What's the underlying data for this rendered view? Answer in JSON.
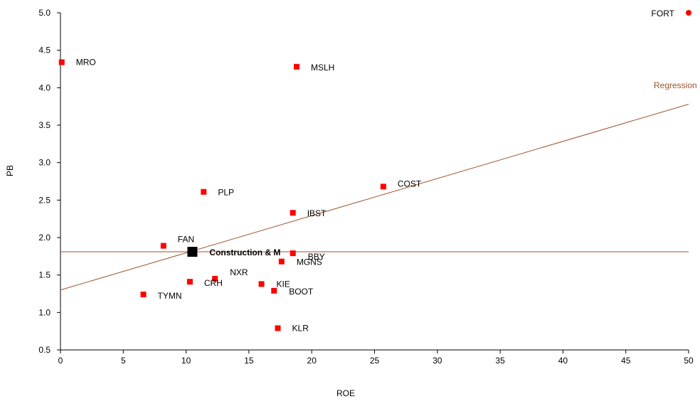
{
  "chart_data": {
    "type": "scatter",
    "title": "",
    "xlabel": "ROE",
    "ylabel": "PB",
    "xlim": [
      0,
      50
    ],
    "ylim": [
      0.5,
      5.0
    ],
    "x_ticks": [
      0,
      5,
      10,
      15,
      20,
      25,
      30,
      35,
      40,
      45,
      50
    ],
    "y_ticks": [
      "0.5",
      "1.0",
      "1.5",
      "2.0",
      "2.5",
      "3.0",
      "3.5",
      "4.0",
      "4.5",
      "5.0"
    ],
    "grid": false,
    "colors": {
      "point": "#ff0000",
      "highlight": "#000000",
      "regression": "#a0522d",
      "axis": "#000000"
    },
    "points": [
      {
        "label": "MRO",
        "x": 0.1,
        "y": 4.34
      },
      {
        "label": "MSLH",
        "x": 18.8,
        "y": 4.28
      },
      {
        "label": "PLP",
        "x": 11.4,
        "y": 2.61
      },
      {
        "label": "COST",
        "x": 25.7,
        "y": 2.68
      },
      {
        "label": "IBST",
        "x": 18.5,
        "y": 2.33
      },
      {
        "label": "FAN",
        "x": 8.2,
        "y": 1.89
      },
      {
        "label": "BBY",
        "x": 18.5,
        "y": 1.79
      },
      {
        "label": "MGNS",
        "x": 17.6,
        "y": 1.68
      },
      {
        "label": "NXR",
        "x": 12.3,
        "y": 1.45
      },
      {
        "label": "CRH",
        "x": 10.3,
        "y": 1.41
      },
      {
        "label": "KIE",
        "x": 16.0,
        "y": 1.38
      },
      {
        "label": "BOOT",
        "x": 17.0,
        "y": 1.29
      },
      {
        "label": "TYMN",
        "x": 6.6,
        "y": 1.24
      },
      {
        "label": "KLR",
        "x": 17.3,
        "y": 0.79
      }
    ],
    "highlight": {
      "label": "Construction & M",
      "x": 10.5,
      "y": 1.81
    },
    "outlier": {
      "label": "FORT",
      "x": 50,
      "y": 5.0
    },
    "average_line_y": 1.81,
    "regression": {
      "label": "Regression",
      "x0": 0,
      "y0": 1.3,
      "x1": 50,
      "y1": 3.78
    }
  }
}
